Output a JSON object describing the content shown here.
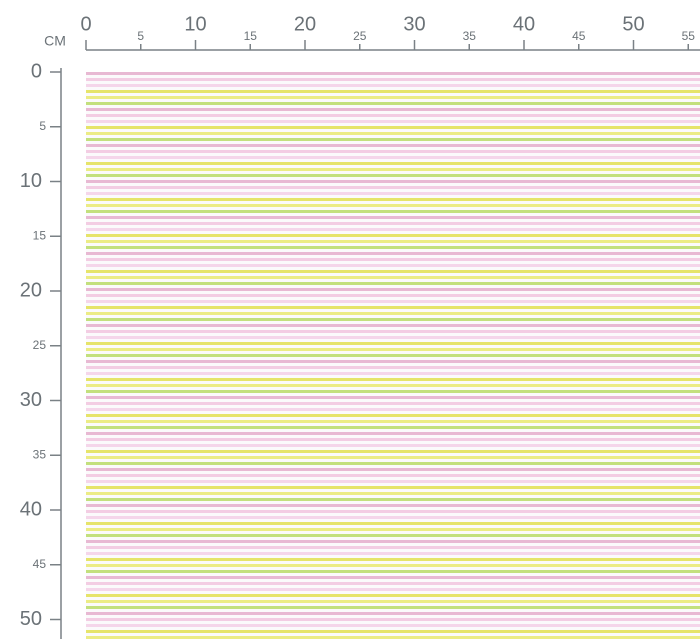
{
  "ruler": {
    "unit": "CM",
    "top_labels": [
      0,
      5,
      10,
      15,
      20,
      25,
      30,
      35,
      40,
      45,
      50,
      55
    ],
    "left_labels": [
      0,
      5,
      10,
      15,
      20,
      25,
      30,
      35,
      40,
      45,
      50
    ]
  }
}
